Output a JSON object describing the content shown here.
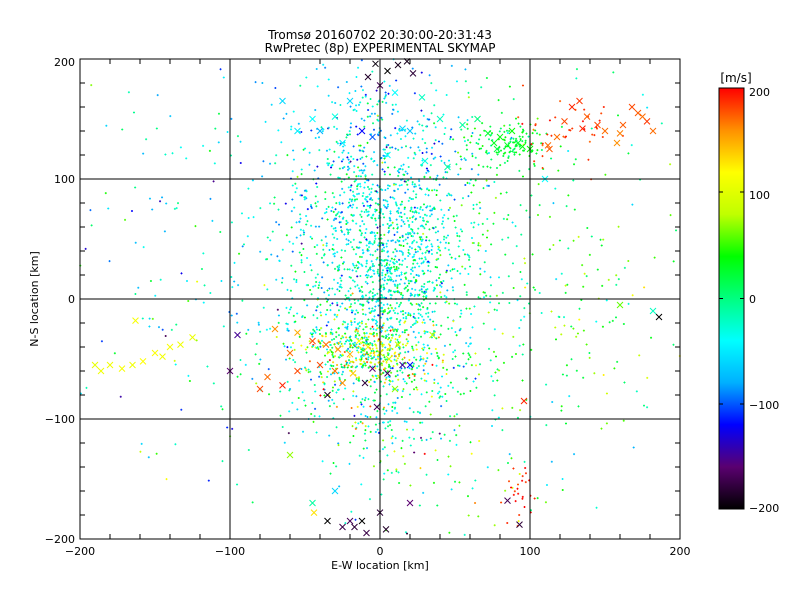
{
  "chart_data": {
    "type": "scatter",
    "title": "Tromsø 20160702 20:30:00-20:31:43",
    "subtitle": "RwPretec (8p) EXPERIMENTAL SKYMAP",
    "xlabel": "E-W location [km]",
    "ylabel": "N-S location [km]",
    "xlim": [
      -200,
      200
    ],
    "ylim": [
      -200,
      200
    ],
    "xticks": [
      "−200",
      "−100",
      "0",
      "100",
      "200"
    ],
    "yticks": [
      "−200",
      "−100",
      "0",
      "100",
      "200"
    ],
    "grid": true,
    "grid_lines": {
      "x": [
        -100,
        0,
        100
      ],
      "y": [
        -100,
        0,
        100
      ]
    },
    "colorbar": {
      "label": "[m/s]",
      "min": -200,
      "max": 200,
      "ticks": [
        "200",
        "100",
        "0",
        "−100",
        "−200"
      ],
      "colormap": [
        "#000000",
        "#5a0070",
        "#0000ff",
        "#00b0ff",
        "#00ffff",
        "#00ff80",
        "#00ff00",
        "#c0ff00",
        "#ffff00",
        "#ff9000",
        "#ff0000"
      ]
    },
    "markers": {
      "cross": "x",
      "dot": "+"
    },
    "series": [
      {
        "marker": "x",
        "points": [
          [
            -3,
            196,
            -195
          ],
          [
            5,
            190,
            -200
          ],
          [
            12,
            195,
            -190
          ],
          [
            -8,
            185,
            -185
          ],
          [
            18,
            198,
            -190
          ],
          [
            22,
            188,
            -180
          ],
          [
            0,
            178,
            -170
          ],
          [
            -65,
            165,
            -60
          ],
          [
            -45,
            150,
            -40
          ],
          [
            -30,
            152,
            -30
          ],
          [
            -55,
            140,
            -50
          ],
          [
            -20,
            165,
            -60
          ],
          [
            10,
            172,
            -40
          ],
          [
            28,
            168,
            -20
          ],
          [
            -12,
            140,
            -120
          ],
          [
            -5,
            135,
            -100
          ],
          [
            15,
            142,
            -60
          ],
          [
            20,
            140,
            -70
          ],
          [
            40,
            150,
            -20
          ],
          [
            55,
            145,
            -10
          ],
          [
            65,
            150,
            0
          ],
          [
            72,
            138,
            25
          ],
          [
            76,
            130,
            30
          ],
          [
            80,
            135,
            35
          ],
          [
            85,
            128,
            30
          ],
          [
            88,
            140,
            40
          ],
          [
            78,
            125,
            20
          ],
          [
            92,
            130,
            25
          ],
          [
            95,
            127,
            35
          ],
          [
            100,
            125,
            40
          ],
          [
            -40,
            140,
            -80
          ],
          [
            -25,
            130,
            -50
          ],
          [
            5,
            120,
            -40
          ],
          [
            30,
            115,
            -30
          ],
          [
            45,
            110,
            -10
          ],
          [
            118,
            135,
            170
          ],
          [
            123,
            148,
            180
          ],
          [
            128,
            160,
            190
          ],
          [
            133,
            165,
            185
          ],
          [
            138,
            152,
            175
          ],
          [
            145,
            145,
            180
          ],
          [
            150,
            140,
            170
          ],
          [
            158,
            130,
            160
          ],
          [
            162,
            145,
            175
          ],
          [
            168,
            160,
            180
          ],
          [
            172,
            155,
            175
          ],
          [
            178,
            148,
            185
          ],
          [
            182,
            140,
            170
          ],
          [
            160,
            138,
            165
          ],
          [
            175,
            152,
            170
          ],
          [
            135,
            142,
            190
          ],
          [
            112,
            128,
            170
          ],
          [
            -190,
            -55,
            105
          ],
          [
            -186,
            -60,
            110
          ],
          [
            -180,
            -55,
            112
          ],
          [
            -172,
            -58,
            115
          ],
          [
            -165,
            -55,
            110
          ],
          [
            -158,
            -52,
            120
          ],
          [
            -150,
            -45,
            118
          ],
          [
            -145,
            -48,
            112
          ],
          [
            -140,
            -40,
            115
          ],
          [
            -133,
            -38,
            110
          ],
          [
            -125,
            -32,
            108
          ],
          [
            -163,
            -18,
            115
          ],
          [
            -70,
            -25,
            160
          ],
          [
            -55,
            -28,
            150
          ],
          [
            -45,
            -35,
            180
          ],
          [
            -36,
            -38,
            170
          ],
          [
            -28,
            -42,
            160
          ],
          [
            -20,
            -46,
            150
          ],
          [
            -14,
            -35,
            120
          ],
          [
            -8,
            -40,
            110
          ],
          [
            0,
            -45,
            100
          ],
          [
            6,
            -50,
            90
          ],
          [
            12,
            -38,
            80
          ],
          [
            -40,
            -55,
            180
          ],
          [
            -30,
            -60,
            170
          ],
          [
            -18,
            -62,
            140
          ],
          [
            -5,
            -58,
            -160
          ],
          [
            5,
            -62,
            -170
          ],
          [
            -10,
            -70,
            -180
          ],
          [
            15,
            -55,
            -150
          ],
          [
            -25,
            -70,
            160
          ],
          [
            -55,
            -60,
            180
          ],
          [
            -60,
            -45,
            170
          ],
          [
            -65,
            -72,
            190
          ],
          [
            -75,
            -65,
            170
          ],
          [
            -80,
            -75,
            180
          ],
          [
            -35,
            -80,
            -190
          ],
          [
            -2,
            -90,
            -170
          ],
          [
            10,
            -75,
            70
          ],
          [
            20,
            -55,
            -120
          ],
          [
            35,
            -30,
            80
          ],
          [
            -95,
            -30,
            -150
          ],
          [
            -100,
            -60,
            -160
          ],
          [
            -95,
            -200,
            -90
          ],
          [
            -60,
            -130,
            70
          ],
          [
            -30,
            -160,
            -60
          ],
          [
            -20,
            -185,
            -170
          ],
          [
            -17,
            -190,
            -180
          ],
          [
            -12,
            -185,
            -200
          ],
          [
            -9,
            -195,
            -175
          ],
          [
            -25,
            -190,
            -175
          ],
          [
            0,
            -178,
            -180
          ],
          [
            4,
            -192,
            -185
          ],
          [
            20,
            -170,
            -160
          ],
          [
            -35,
            -185,
            -200
          ],
          [
            -45,
            -170,
            -10
          ],
          [
            85,
            -168,
            -170
          ],
          [
            93,
            -188,
            -180
          ],
          [
            96,
            -85,
            190
          ],
          [
            -44,
            -178,
            130
          ],
          [
            113,
            125,
            175
          ],
          [
            110,
            100,
            -40
          ],
          [
            186,
            -15,
            -200
          ],
          [
            182,
            -10,
            -20
          ],
          [
            160,
            -5,
            60
          ]
        ]
      },
      {
        "marker": "+",
        "clusters": [
          {
            "cx": 0,
            "cy": 20,
            "sx": 28,
            "sy": 55,
            "n": 1350,
            "v": -30,
            "vs": 35
          },
          {
            "cx": 0,
            "cy": 120,
            "sx": 35,
            "sy": 40,
            "n": 350,
            "v": -60,
            "vs": 40
          },
          {
            "cx": -10,
            "cy": -45,
            "sx": 20,
            "sy": 15,
            "n": 340,
            "v": 80,
            "vs": 60
          },
          {
            "cx": 5,
            "cy": -100,
            "sx": 25,
            "sy": 40,
            "n": 120,
            "v": 10,
            "vs": 70
          },
          {
            "cx": 40,
            "cy": 0,
            "sx": 45,
            "sy": 75,
            "n": 260,
            "v": 20,
            "vs": 35
          },
          {
            "cx": -45,
            "cy": 30,
            "sx": 40,
            "sy": 80,
            "n": 180,
            "v": -35,
            "vs": 40
          },
          {
            "cx": 85,
            "cy": 130,
            "sx": 15,
            "sy": 10,
            "n": 120,
            "v": 20,
            "vs": 15
          },
          {
            "cx": 125,
            "cy": 135,
            "sx": 20,
            "sy": 15,
            "n": 40,
            "v": 185,
            "vs": 10
          },
          {
            "cx": 90,
            "cy": -160,
            "sx": 5,
            "sy": 15,
            "n": 25,
            "v": 190,
            "vs": 10
          },
          {
            "cx": 100,
            "cy": 50,
            "sx": 55,
            "sy": 80,
            "n": 160,
            "v": 20,
            "vs": 40
          },
          {
            "cx": -130,
            "cy": 60,
            "sx": 40,
            "sy": 90,
            "n": 90,
            "v": -40,
            "vs": 60
          },
          {
            "cx": 60,
            "cy": -120,
            "sx": 40,
            "sy": 50,
            "n": 80,
            "v": 10,
            "vs": 80
          },
          {
            "cx": 150,
            "cy": -30,
            "sx": 30,
            "sy": 30,
            "n": 40,
            "v": 50,
            "vs": 40
          },
          {
            "cx": -140,
            "cy": -120,
            "sx": 40,
            "sy": 50,
            "n": 25,
            "v": -20,
            "vs": 60
          }
        ]
      }
    ]
  }
}
